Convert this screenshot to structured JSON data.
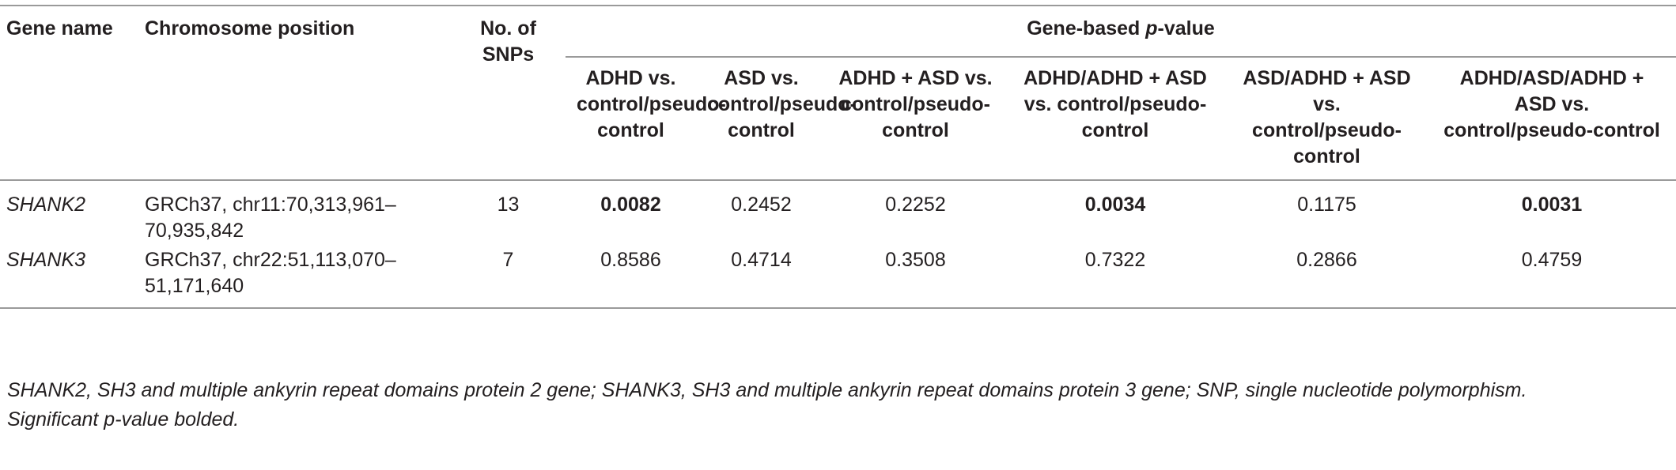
{
  "table": {
    "header": {
      "gene_name": "Gene name",
      "chromosome_position": "Chromosome position",
      "snps": "No. of SNPs",
      "group_title": [
        "Gene-based ",
        "p",
        "-value"
      ],
      "comparisons": [
        "ADHD vs. control/pseudo-control",
        "ASD vs. control/pseudo-control",
        "ADHD + ASD vs. control/pseudo-control",
        "ADHD/ADHD + ASD vs. control/pseudo-control",
        "ASD/ADHD + ASD vs. control/pseudo-control",
        "ADHD/ASD/ADHD + ASD vs. control/pseudo-control"
      ]
    },
    "rows": [
      {
        "gene": "SHANK2",
        "position": "GRCh37, chr11:70,313,961–70,935,842",
        "snps": 13,
        "p_values": [
          0.0082,
          0.2452,
          0.2252,
          0.0034,
          0.1175,
          0.0031
        ],
        "significant": [
          true,
          false,
          false,
          true,
          false,
          true
        ]
      },
      {
        "gene": "SHANK3",
        "position": "GRCh37, chr22:51,113,070–51,171,640",
        "snps": 7,
        "p_values": [
          0.8586,
          0.4714,
          0.3508,
          0.7322,
          0.2866,
          0.4759
        ],
        "significant": [
          false,
          false,
          false,
          false,
          false,
          false
        ]
      }
    ],
    "footnotes": [
      "SHANK2, SH3 and multiple ankyrin repeat domains protein 2 gene; SHANK3, SH3 and multiple ankyrin repeat domains protein 3 gene; SNP, single nucleotide polymorphism.",
      "Significant p-value bolded."
    ]
  }
}
